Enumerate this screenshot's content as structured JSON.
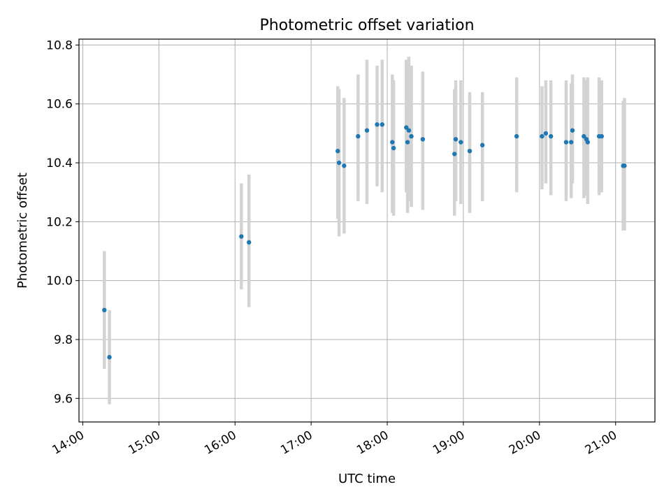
{
  "chart_data": {
    "type": "scatter",
    "title": "Photometric offset variation",
    "xlabel": "UTC time",
    "ylabel": "Photometric offset",
    "x_ticks": [
      "14:00",
      "15:00",
      "16:00",
      "17:00",
      "18:00",
      "19:00",
      "20:00",
      "21:00"
    ],
    "y_ticks": [
      "9.6",
      "9.8",
      "10.0",
      "10.2",
      "10.4",
      "10.6",
      "10.8"
    ],
    "xlim": [
      "13:57",
      "21:31"
    ],
    "ylim": [
      9.52,
      10.82
    ],
    "grid": true,
    "colors": {
      "points": "#1f77b4",
      "errorbars": "#d3d3d3",
      "grid": "#b0b0b0"
    },
    "points": [
      {
        "x": "14:17",
        "y": 9.9,
        "ylo": 9.7,
        "yhi": 10.1
      },
      {
        "x": "14:21",
        "y": 9.74,
        "ylo": 9.58,
        "yhi": 9.9
      },
      {
        "x": "16:05",
        "y": 10.15,
        "ylo": 9.97,
        "yhi": 10.33
      },
      {
        "x": "16:11",
        "y": 10.13,
        "ylo": 9.91,
        "yhi": 10.36
      },
      {
        "x": "17:21",
        "y": 10.44,
        "ylo": 10.21,
        "yhi": 10.66
      },
      {
        "x": "17:22",
        "y": 10.4,
        "ylo": 10.15,
        "yhi": 10.65
      },
      {
        "x": "17:26",
        "y": 10.39,
        "ylo": 10.16,
        "yhi": 10.62
      },
      {
        "x": "17:37",
        "y": 10.49,
        "ylo": 10.27,
        "yhi": 10.7
      },
      {
        "x": "17:44",
        "y": 10.51,
        "ylo": 10.26,
        "yhi": 10.75
      },
      {
        "x": "17:52",
        "y": 10.53,
        "ylo": 10.32,
        "yhi": 10.73
      },
      {
        "x": "17:56",
        "y": 10.53,
        "ylo": 10.3,
        "yhi": 10.75
      },
      {
        "x": "18:04",
        "y": 10.47,
        "ylo": 10.23,
        "yhi": 10.7
      },
      {
        "x": "18:05",
        "y": 10.45,
        "ylo": 10.22,
        "yhi": 10.68
      },
      {
        "x": "18:15",
        "y": 10.52,
        "ylo": 10.3,
        "yhi": 10.75
      },
      {
        "x": "18:16",
        "y": 10.47,
        "ylo": 10.23,
        "yhi": 10.71
      },
      {
        "x": "18:17",
        "y": 10.51,
        "ylo": 10.27,
        "yhi": 10.76
      },
      {
        "x": "18:19",
        "y": 10.49,
        "ylo": 10.25,
        "yhi": 10.73
      },
      {
        "x": "18:28",
        "y": 10.48,
        "ylo": 10.24,
        "yhi": 10.71
      },
      {
        "x": "18:53",
        "y": 10.43,
        "ylo": 10.22,
        "yhi": 10.65
      },
      {
        "x": "18:54",
        "y": 10.48,
        "ylo": 10.27,
        "yhi": 10.68
      },
      {
        "x": "18:58",
        "y": 10.47,
        "ylo": 10.26,
        "yhi": 10.68
      },
      {
        "x": "19:05",
        "y": 10.44,
        "ylo": 10.23,
        "yhi": 10.64
      },
      {
        "x": "19:15",
        "y": 10.46,
        "ylo": 10.27,
        "yhi": 10.64
      },
      {
        "x": "19:42",
        "y": 10.49,
        "ylo": 10.3,
        "yhi": 10.69
      },
      {
        "x": "20:02",
        "y": 10.49,
        "ylo": 10.31,
        "yhi": 10.66
      },
      {
        "x": "20:05",
        "y": 10.5,
        "ylo": 10.33,
        "yhi": 10.68
      },
      {
        "x": "20:09",
        "y": 10.49,
        "ylo": 10.29,
        "yhi": 10.68
      },
      {
        "x": "20:21",
        "y": 10.47,
        "ylo": 10.27,
        "yhi": 10.68
      },
      {
        "x": "20:25",
        "y": 10.47,
        "ylo": 10.28,
        "yhi": 10.67
      },
      {
        "x": "20:26",
        "y": 10.51,
        "ylo": 10.33,
        "yhi": 10.7
      },
      {
        "x": "20:35",
        "y": 10.49,
        "ylo": 10.28,
        "yhi": 10.69
      },
      {
        "x": "20:37",
        "y": 10.48,
        "ylo": 10.29,
        "yhi": 10.68
      },
      {
        "x": "20:38",
        "y": 10.47,
        "ylo": 10.26,
        "yhi": 10.69
      },
      {
        "x": "20:47",
        "y": 10.49,
        "ylo": 10.29,
        "yhi": 10.69
      },
      {
        "x": "20:49",
        "y": 10.49,
        "ylo": 10.3,
        "yhi": 10.68
      },
      {
        "x": "21:06",
        "y": 10.39,
        "ylo": 10.17,
        "yhi": 10.61
      },
      {
        "x": "21:07",
        "y": 10.39,
        "ylo": 10.17,
        "yhi": 10.62
      }
    ]
  }
}
